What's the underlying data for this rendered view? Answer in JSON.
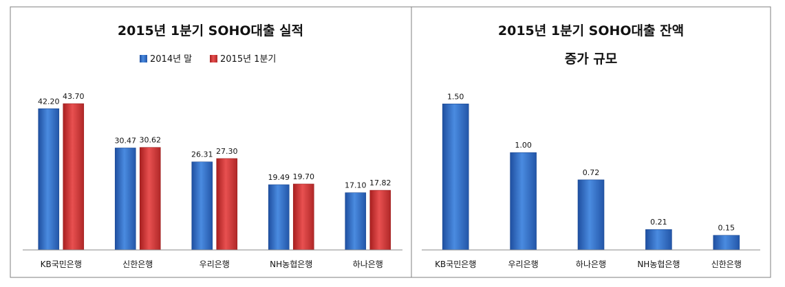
{
  "colors": {
    "series_2014": "#2f6fc6",
    "series_2015": "#d93a3a",
    "panel_border": "#7f7f7f",
    "axis": "#8a8a8a",
    "text": "#111111"
  },
  "chart_data": [
    {
      "type": "bar",
      "title": "2015년 1분기 SOHO대출 실적",
      "subtitle": "",
      "xlabel": "",
      "ylabel": "",
      "categories": [
        "KB국민은행",
        "신한은행",
        "우리은행",
        "NH농협은행",
        "하나은행"
      ],
      "series": [
        {
          "name": "2014년 말",
          "values": [
            42.2,
            30.47,
            26.31,
            19.49,
            17.1
          ],
          "labels": [
            "42.20",
            "30.47",
            "26.31",
            "19.49",
            "17.10"
          ]
        },
        {
          "name": "2015년 1분기",
          "values": [
            43.7,
            30.62,
            27.3,
            19.7,
            17.82
          ],
          "labels": [
            "43.70",
            "30.62",
            "27.30",
            "19.70",
            "17.82"
          ]
        }
      ],
      "legend": "top-center",
      "grid": false,
      "ylim": [
        0,
        48
      ]
    },
    {
      "type": "bar",
      "title": "2015년 1분기 SOHO대출 잔액",
      "subtitle": "증가 규모",
      "xlabel": "",
      "ylabel": "",
      "categories": [
        "KB국민은행",
        "우리은행",
        "하나은행",
        "NH농협은행",
        "신한은행"
      ],
      "series": [
        {
          "values": [
            1.5,
            1.0,
            0.72,
            0.21,
            0.15
          ],
          "labels": [
            "1.50",
            "1.00",
            "0.72",
            "0.21",
            "0.15"
          ]
        }
      ],
      "legend": "none",
      "grid": false,
      "ylim": [
        0,
        1.65
      ]
    }
  ]
}
